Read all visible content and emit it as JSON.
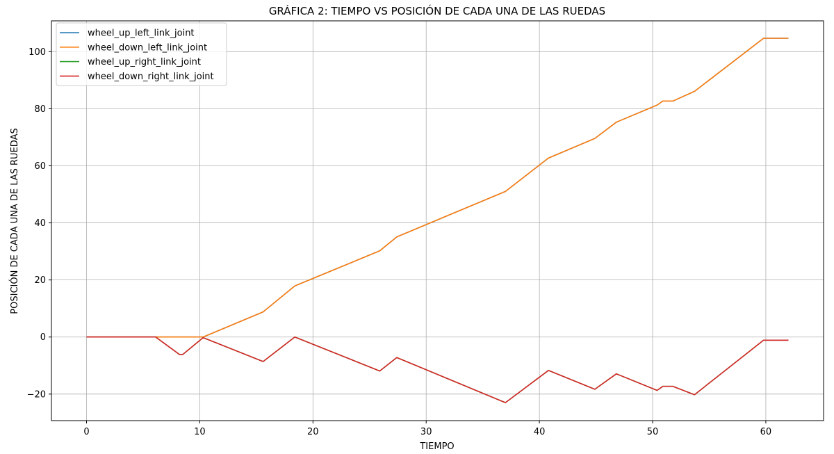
{
  "chart_data": {
    "type": "line",
    "title": "GRÁFICA 2: TIEMPO VS POSICIÓN DE CADA UNA DE LAS RUEDAS",
    "xlabel": "TIEMPO",
    "ylabel": "POSICIÓN DE CADA UNA DE LAS RUEDAS",
    "xlim": [
      -3.1,
      65.1
    ],
    "ylim": [
      -29.3,
      110.8
    ],
    "xticks": [
      0,
      10,
      20,
      30,
      40,
      50,
      60
    ],
    "xtick_labels": [
      "0",
      "10",
      "20",
      "30",
      "40",
      "50",
      "60"
    ],
    "yticks": [
      -20,
      0,
      20,
      40,
      60,
      80,
      100
    ],
    "ytick_labels": [
      "−20",
      "0",
      "20",
      "40",
      "60",
      "80",
      "100"
    ],
    "grid": true,
    "legend_position": "top-left",
    "series": [
      {
        "name": "wheel_up_left_link_joint",
        "color": "#1f77b4",
        "x": [
          0,
          6.1,
          10.3,
          15.6,
          18.4,
          25.9,
          27.4,
          37.0,
          40.8,
          44.9,
          46.8,
          50.4,
          50.9,
          51.8,
          53.7,
          59.8,
          62.0
        ],
        "y": [
          0,
          0,
          0,
          8.8,
          17.9,
          30.2,
          35.1,
          51.0,
          62.7,
          69.6,
          75.3,
          81.3,
          82.7,
          82.7,
          86.1,
          104.7,
          104.7
        ]
      },
      {
        "name": "wheel_down_left_link_joint",
        "color": "#ff7f0e",
        "x": [
          0,
          6.1,
          10.3,
          15.6,
          18.4,
          25.9,
          27.4,
          37.0,
          40.8,
          44.9,
          46.8,
          50.4,
          50.9,
          51.8,
          53.7,
          59.8,
          62.0
        ],
        "y": [
          0,
          0,
          0,
          8.8,
          17.9,
          30.2,
          35.1,
          51.0,
          62.7,
          69.6,
          75.3,
          81.3,
          82.7,
          82.7,
          86.1,
          104.7,
          104.7
        ]
      },
      {
        "name": "wheel_up_right_link_joint",
        "color": "#2ca02c",
        "x": [
          0,
          6.1,
          8.2,
          8.5,
          10.3,
          15.6,
          18.4,
          25.9,
          27.4,
          37.0,
          40.8,
          44.9,
          46.8,
          50.4,
          50.9,
          51.8,
          53.7,
          59.8,
          62.0
        ],
        "y": [
          0,
          0,
          -6.1,
          -6.1,
          -0.2,
          -8.6,
          0,
          -11.9,
          -7.2,
          -23.0,
          -11.7,
          -18.3,
          -12.9,
          -18.7,
          -17.3,
          -17.3,
          -20.2,
          -1.1,
          -1.1
        ]
      },
      {
        "name": "wheel_down_right_link_joint",
        "color": "#d62728",
        "x": [
          0,
          6.1,
          8.2,
          8.5,
          10.3,
          15.6,
          18.4,
          25.9,
          27.4,
          37.0,
          40.8,
          44.9,
          46.8,
          50.4,
          50.9,
          51.8,
          53.7,
          59.8,
          62.0
        ],
        "y": [
          0,
          0,
          -6.1,
          -6.1,
          -0.2,
          -8.6,
          0,
          -11.9,
          -7.2,
          -23.0,
          -11.7,
          -18.3,
          -12.9,
          -18.7,
          -17.3,
          -17.3,
          -20.2,
          -1.1,
          -1.1
        ]
      }
    ]
  }
}
